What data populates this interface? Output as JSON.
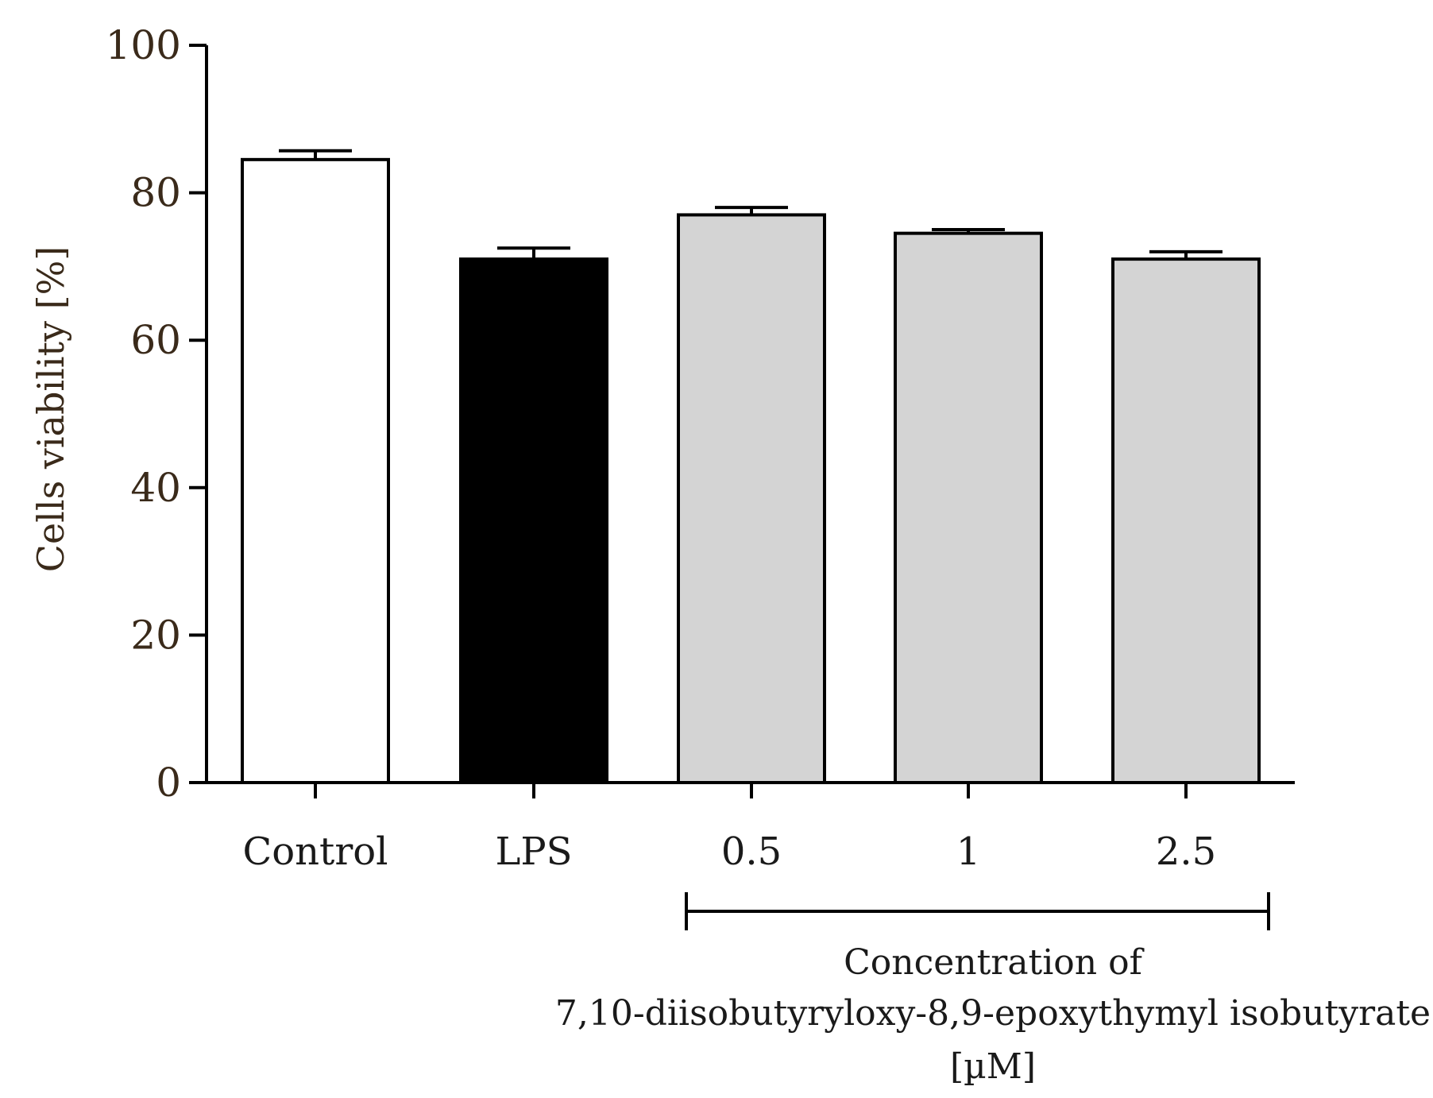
{
  "chart_data": {
    "type": "bar",
    "ylabel": "Cells viability [%]",
    "ylim": [
      0,
      100
    ],
    "yticks": [
      0,
      20,
      40,
      60,
      80,
      100
    ],
    "categories": [
      "Control",
      "LPS",
      "0.5",
      "1",
      "2.5"
    ],
    "values": [
      84.5,
      71,
      77,
      74.5,
      71
    ],
    "errors": [
      1.2,
      1.5,
      1.0,
      0.5,
      1.0
    ],
    "fills": [
      "#ffffff",
      "#000000",
      "#d4d4d4",
      "#d4d4d4",
      "#d4d4d4"
    ],
    "group_bracket": {
      "from_category": "0.5",
      "to_category": "2.5",
      "label_lines": [
        "Concentration of",
        "7,10-diisobutyryloxy-8,9-epoxythymyl isobutyrate",
        "[µM]"
      ]
    }
  }
}
